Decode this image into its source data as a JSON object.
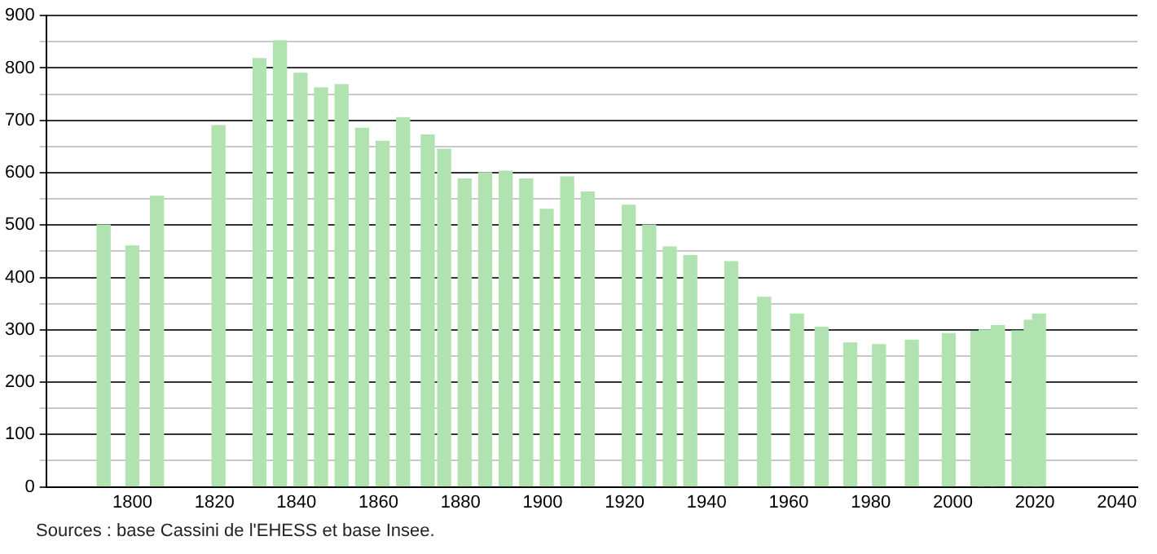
{
  "chart_data": {
    "type": "bar",
    "x": [
      1793,
      1800,
      1806,
      1821,
      1831,
      1836,
      1841,
      1846,
      1851,
      1856,
      1861,
      1866,
      1872,
      1876,
      1881,
      1886,
      1891,
      1896,
      1901,
      1906,
      1911,
      1921,
      1926,
      1931,
      1936,
      1946,
      1954,
      1962,
      1968,
      1975,
      1982,
      1990,
      1999,
      2006,
      2008,
      2011,
      2016,
      2019,
      2021
    ],
    "values": [
      500,
      460,
      555,
      690,
      818,
      852,
      790,
      762,
      768,
      685,
      660,
      705,
      672,
      645,
      588,
      600,
      603,
      588,
      530,
      592,
      563,
      538,
      500,
      458,
      442,
      430,
      362,
      330,
      305,
      275,
      272,
      280,
      293,
      297,
      300,
      308,
      298,
      318,
      330
    ],
    "color": "#b0e3b0",
    "xlim": [
      1779,
      2045
    ],
    "xticks": [
      1800,
      1820,
      1840,
      1860,
      1880,
      1900,
      1920,
      1940,
      1960,
      1980,
      2000,
      2020,
      2040
    ],
    "ylim": [
      0,
      900
    ],
    "yticks": [
      0,
      {
        "value": 50,
        "label": null
      },
      100,
      {
        "value": 150,
        "label": null
      },
      200,
      {
        "value": 250,
        "label": null
      },
      300,
      {
        "value": 350,
        "label": null
      },
      400,
      {
        "value": 450,
        "label": null
      },
      500,
      {
        "value": 550,
        "label": null
      },
      600,
      {
        "value": 650,
        "label": null
      },
      700,
      {
        "value": 750,
        "label": null
      },
      800,
      {
        "value": 850,
        "label": null
      },
      900
    ],
    "grid": "y",
    "legend": false,
    "annotations": [
      "Sources : base Cassini de l'EHESS et base Insee."
    ]
  }
}
